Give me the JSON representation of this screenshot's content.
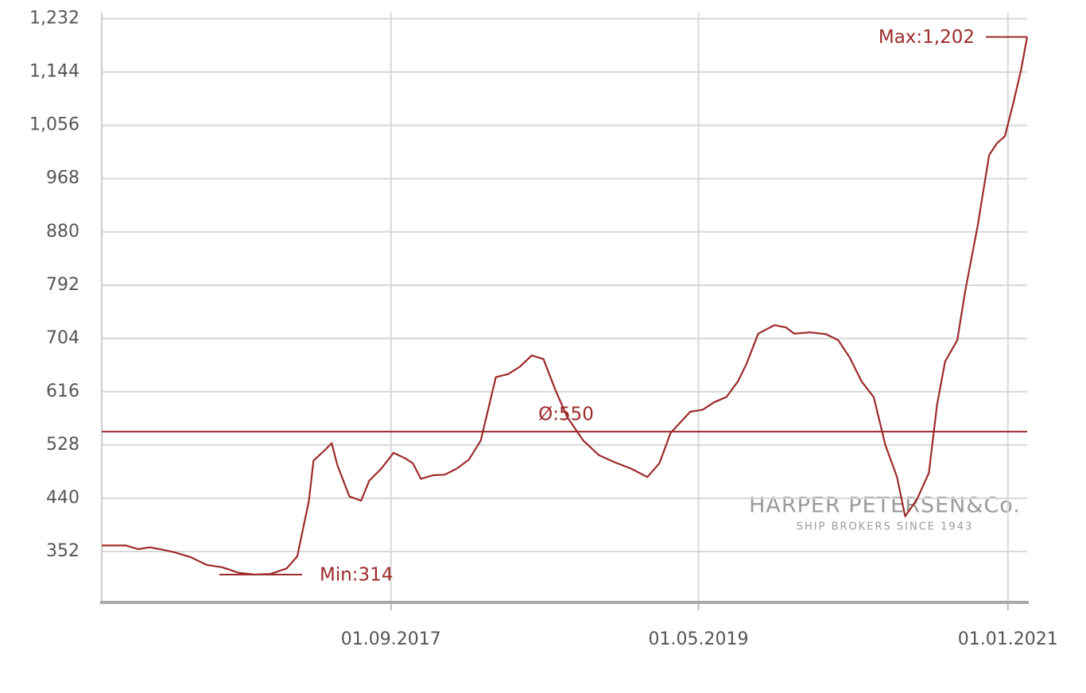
{
  "chart_data": {
    "type": "line",
    "color": "#9c2a2a",
    "x": [
      "2016-02-08",
      "2016-03-27",
      "2016-04-20",
      "2016-05-13",
      "2016-06-07",
      "2016-06-30",
      "2016-08-01",
      "2016-09-02",
      "2016-10-03",
      "2016-11-04",
      "2016-12-05",
      "2017-01-06",
      "2017-02-07",
      "2017-02-28",
      "2017-03-23",
      "2017-04-01",
      "2017-04-24",
      "2017-05-07",
      "2017-05-18",
      "2017-06-11",
      "2017-07-04",
      "2017-07-20",
      "2017-08-13",
      "2017-09-06",
      "2017-09-29",
      "2017-10-14",
      "2017-10-30",
      "2017-11-23",
      "2017-12-16",
      "2018-01-09",
      "2018-02-02",
      "2018-02-25",
      "2018-03-27",
      "2018-04-20",
      "2018-05-13",
      "2018-06-06",
      "2018-06-29",
      "2018-07-22",
      "2018-08-15",
      "2018-09-16",
      "2018-10-17",
      "2018-11-18",
      "2018-12-19",
      "2019-01-20",
      "2019-02-13",
      "2019-03-07",
      "2019-04-15",
      "2019-05-09",
      "2019-06-02",
      "2019-06-25",
      "2019-07-18",
      "2019-08-04",
      "2019-08-27",
      "2019-09-28",
      "2019-10-21",
      "2019-11-06",
      "2019-12-07",
      "2020-01-08",
      "2020-02-01",
      "2020-02-24",
      "2020-03-18",
      "2020-04-11",
      "2020-05-04",
      "2020-05-27",
      "2020-06-12",
      "2020-07-06",
      "2020-07-29",
      "2020-08-14",
      "2020-08-30",
      "2020-09-23",
      "2020-10-09",
      "2020-11-02",
      "2020-11-25",
      "2020-12-11",
      "2020-12-26",
      "2021-01-12",
      "2021-01-27",
      "2021-02-08"
    ],
    "values": [
      362,
      362,
      356,
      359,
      355,
      351,
      343,
      330,
      326,
      317,
      314,
      315,
      324,
      344,
      436,
      502,
      520,
      531,
      495,
      443,
      436,
      469,
      489,
      515,
      506,
      498,
      472,
      478,
      479,
      489,
      504,
      535,
      640,
      645,
      657,
      676,
      670,
      620,
      574,
      535,
      511,
      499,
      489,
      475,
      498,
      548,
      583,
      586,
      599,
      607,
      633,
      662,
      712,
      726,
      722,
      712,
      714,
      711,
      701,
      672,
      633,
      607,
      528,
      475,
      410,
      439,
      482,
      594,
      666,
      701,
      784,
      889,
      1007,
      1027,
      1038,
      1094,
      1148,
      1202
    ],
    "xlim": [
      "2016-02-08",
      "2021-02-08"
    ],
    "xticks": [
      {
        "value": "2017-09-01",
        "label": "01.09.2017"
      },
      {
        "value": "2019-05-01",
        "label": "01.05.2019"
      },
      {
        "value": "2021-01-01",
        "label": "01.01.2021"
      }
    ],
    "ylim": [
      268,
      1242
    ],
    "yticks": [
      352,
      440,
      528,
      616,
      704,
      792,
      880,
      968,
      {
        "value": 1056,
        "label": "1,056"
      },
      {
        "value": 1144,
        "label": "1,144"
      },
      {
        "value": 1232,
        "label": "1,232"
      }
    ],
    "grid": true,
    "annotations": {
      "max": {
        "value": 1202,
        "label": "Max:1,202"
      },
      "min": {
        "value": 314,
        "label": "Min:314"
      },
      "mean": {
        "value": 550,
        "label": "Ø:550"
      }
    }
  },
  "watermark": {
    "title": "HARPER PETERSEN&Co.",
    "subtitle": "SHIP BROKERS SINCE 1943"
  }
}
